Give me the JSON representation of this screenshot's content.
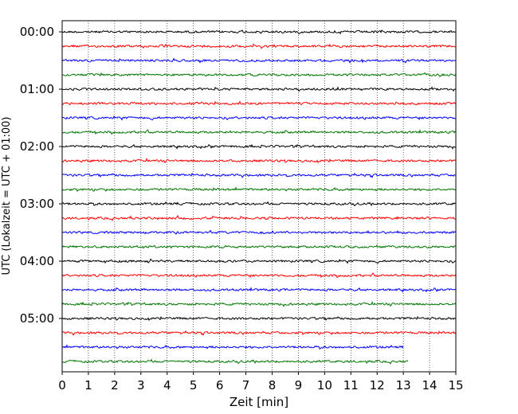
{
  "chart_data": {
    "type": "line",
    "title": "",
    "xlabel": "Zeit  [min]",
    "ylabel": "UTC (Lokalzeit = UTC + 01:00)",
    "xlim": [
      0,
      15
    ],
    "x_ticks": [
      "0",
      "1",
      "2",
      "3",
      "4",
      "5",
      "6",
      "7",
      "8",
      "9",
      "10",
      "11",
      "12",
      "13",
      "14",
      "15"
    ],
    "y_ticks": [
      "00:00",
      "01:00",
      "02:00",
      "03:00",
      "04:00",
      "05:00"
    ],
    "grid": "vertical dotted lines at each minute",
    "trace_interval_min": 15,
    "colors": [
      "#000000",
      "#ff0000",
      "#0000ff",
      "#007700"
    ],
    "series": [
      {
        "start": "00:00",
        "color": "#000000",
        "end_min": 15
      },
      {
        "start": "00:15",
        "color": "#ff0000",
        "end_min": 15
      },
      {
        "start": "00:30",
        "color": "#0000ff",
        "end_min": 15
      },
      {
        "start": "00:45",
        "color": "#007700",
        "end_min": 15
      },
      {
        "start": "01:00",
        "color": "#000000",
        "end_min": 15
      },
      {
        "start": "01:15",
        "color": "#ff0000",
        "end_min": 15
      },
      {
        "start": "01:30",
        "color": "#0000ff",
        "end_min": 15
      },
      {
        "start": "01:45",
        "color": "#007700",
        "end_min": 15
      },
      {
        "start": "02:00",
        "color": "#000000",
        "end_min": 15
      },
      {
        "start": "02:15",
        "color": "#ff0000",
        "end_min": 15
      },
      {
        "start": "02:30",
        "color": "#0000ff",
        "end_min": 15
      },
      {
        "start": "02:45",
        "color": "#007700",
        "end_min": 15
      },
      {
        "start": "03:00",
        "color": "#000000",
        "end_min": 15
      },
      {
        "start": "03:15",
        "color": "#ff0000",
        "end_min": 15
      },
      {
        "start": "03:30",
        "color": "#0000ff",
        "end_min": 15
      },
      {
        "start": "03:45",
        "color": "#007700",
        "end_min": 15
      },
      {
        "start": "04:00",
        "color": "#000000",
        "end_min": 15
      },
      {
        "start": "04:15",
        "color": "#ff0000",
        "end_min": 15
      },
      {
        "start": "04:30",
        "color": "#0000ff",
        "end_min": 15
      },
      {
        "start": "04:45",
        "color": "#007700",
        "end_min": 15
      },
      {
        "start": "05:00",
        "color": "#000000",
        "end_min": 15
      },
      {
        "start": "05:15",
        "color": "#ff0000",
        "end_min": 15
      },
      {
        "start": "05:30",
        "color": "#0000ff",
        "end_min": 13
      },
      {
        "start": "05:45",
        "color": "#007700",
        "end_min": 13.2
      }
    ]
  }
}
